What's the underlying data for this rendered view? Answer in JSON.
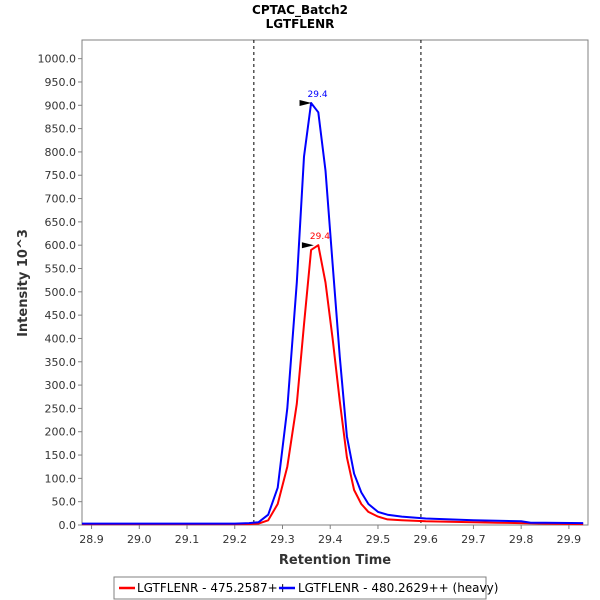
{
  "chart_data": {
    "type": "line",
    "title": "CPTAC_Batch2",
    "subtitle": "LGTFLENR",
    "xlabel": "Retention Time",
    "ylabel": "Intensity 10^3",
    "xlim": [
      28.88,
      29.94
    ],
    "ylim": [
      0,
      1040
    ],
    "x_ticks": [
      "28.9",
      "29.0",
      "29.1",
      "29.2",
      "29.3",
      "29.4",
      "29.5",
      "29.6",
      "29.7",
      "29.8",
      "29.9"
    ],
    "y_ticks": [
      "0.0",
      "50.0",
      "100.0",
      "150.0",
      "200.0",
      "250.0",
      "300.0",
      "350.0",
      "400.0",
      "450.0",
      "500.0",
      "550.0",
      "600.0",
      "650.0",
      "700.0",
      "750.0",
      "800.0",
      "850.0",
      "900.0",
      "950.0",
      "1000.0"
    ],
    "boundaries": [
      29.24,
      29.59
    ],
    "legend_position": "bottom",
    "series": [
      {
        "name": "LGTFLENR - 475.2587++",
        "color": "#ff0000",
        "peak_label": "29.4",
        "peak": [
          29.37,
          600
        ],
        "points": [
          [
            28.88,
            2
          ],
          [
            28.95,
            2
          ],
          [
            29.0,
            2
          ],
          [
            29.05,
            2
          ],
          [
            29.1,
            2
          ],
          [
            29.15,
            2
          ],
          [
            29.2,
            2
          ],
          [
            29.23,
            2
          ],
          [
            29.25,
            3
          ],
          [
            29.27,
            10
          ],
          [
            29.29,
            45
          ],
          [
            29.31,
            125
          ],
          [
            29.33,
            260
          ],
          [
            29.345,
            430
          ],
          [
            29.36,
            590
          ],
          [
            29.375,
            600
          ],
          [
            29.39,
            520
          ],
          [
            29.405,
            400
          ],
          [
            29.42,
            265
          ],
          [
            29.435,
            145
          ],
          [
            29.45,
            75
          ],
          [
            29.465,
            45
          ],
          [
            29.48,
            28
          ],
          [
            29.5,
            18
          ],
          [
            29.52,
            12
          ],
          [
            29.55,
            10
          ],
          [
            29.6,
            8
          ],
          [
            29.65,
            7
          ],
          [
            29.7,
            6
          ],
          [
            29.75,
            5
          ],
          [
            29.8,
            4
          ],
          [
            29.85,
            3
          ],
          [
            29.93,
            2
          ]
        ]
      },
      {
        "name": "LGTFLENR - 480.2629++ (heavy)",
        "color": "#0000ff",
        "peak_label": "29.4",
        "peak": [
          29.365,
          905
        ],
        "points": [
          [
            28.88,
            3
          ],
          [
            28.95,
            3
          ],
          [
            29.0,
            3
          ],
          [
            29.05,
            3
          ],
          [
            29.1,
            3
          ],
          [
            29.15,
            3
          ],
          [
            29.2,
            3
          ],
          [
            29.23,
            4
          ],
          [
            29.25,
            6
          ],
          [
            29.27,
            22
          ],
          [
            29.29,
            80
          ],
          [
            29.31,
            250
          ],
          [
            29.33,
            520
          ],
          [
            29.345,
            790
          ],
          [
            29.36,
            905
          ],
          [
            29.375,
            885
          ],
          [
            29.39,
            760
          ],
          [
            29.405,
            560
          ],
          [
            29.42,
            360
          ],
          [
            29.435,
            190
          ],
          [
            29.45,
            110
          ],
          [
            29.465,
            70
          ],
          [
            29.48,
            45
          ],
          [
            29.5,
            28
          ],
          [
            29.52,
            22
          ],
          [
            29.55,
            18
          ],
          [
            29.6,
            14
          ],
          [
            29.65,
            12
          ],
          [
            29.7,
            10
          ],
          [
            29.75,
            9
          ],
          [
            29.8,
            8
          ],
          [
            29.82,
            5
          ],
          [
            29.85,
            5
          ],
          [
            29.93,
            4
          ]
        ]
      }
    ]
  }
}
